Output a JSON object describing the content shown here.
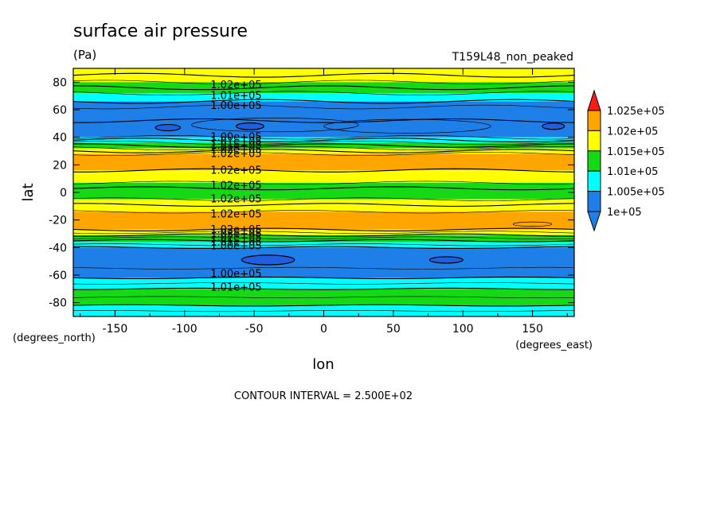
{
  "chart_data": {
    "type": "heatmap",
    "title": "surface air pressure",
    "units": "(Pa)",
    "run_label": "T159L48_non_peaked",
    "xlabel": "lon",
    "ylabel": "lat",
    "x_unit_label": "(degrees_east)",
    "y_unit_label": "(degrees_north)",
    "xlim": [
      -180,
      180
    ],
    "ylim": [
      -90,
      90
    ],
    "x_ticks": [
      -150,
      -100,
      -50,
      0,
      50,
      100,
      150
    ],
    "x_tick_labels": [
      "-150",
      "-100",
      "-50",
      "0",
      "50",
      "100",
      "150"
    ],
    "y_ticks": [
      -80,
      -60,
      -40,
      -20,
      0,
      20,
      40,
      60,
      80
    ],
    "y_tick_labels": [
      "-80",
      "-60",
      "-40",
      "-20",
      "0",
      "20",
      "40",
      "60",
      "80"
    ],
    "contour_interval_text": "CONTOUR INTERVAL = 2.500E+02",
    "colorbar": {
      "levels": [
        100000,
        100500,
        101000,
        101500,
        102000,
        102500
      ],
      "labels": [
        "1e+05",
        "1.005e+05",
        "1.01e+05",
        "1.015e+05",
        "1.02e+05",
        "1.025e+05"
      ],
      "colors": [
        "#1f7fe8",
        "#00ffff",
        "#16d916",
        "#ffff00",
        "#ffa500",
        "#ff1a1a"
      ],
      "low_color": "#1f7fe8",
      "high_color": "#ff1a1a"
    },
    "zonal_bands": [
      {
        "lat_from": 90,
        "lat_to": 80,
        "color": "#ffff00"
      },
      {
        "lat_from": 80,
        "lat_to": 72,
        "color": "#16d916"
      },
      {
        "lat_from": 72,
        "lat_to": 66,
        "color": "#00ffff"
      },
      {
        "lat_from": 66,
        "lat_to": 40,
        "color": "#1f7fe8"
      },
      {
        "lat_from": 40,
        "lat_to": 36,
        "color": "#00ffff"
      },
      {
        "lat_from": 36,
        "lat_to": 32,
        "color": "#16d916"
      },
      {
        "lat_from": 32,
        "lat_to": 28,
        "color": "#ffff00"
      },
      {
        "lat_from": 28,
        "lat_to": 16,
        "color": "#ffa500"
      },
      {
        "lat_from": 16,
        "lat_to": 7,
        "color": "#ffff00"
      },
      {
        "lat_from": 7,
        "lat_to": -5,
        "color": "#16d916"
      },
      {
        "lat_from": -5,
        "lat_to": -14,
        "color": "#ffff00"
      },
      {
        "lat_from": -14,
        "lat_to": -27,
        "color": "#ffa500"
      },
      {
        "lat_from": -27,
        "lat_to": -31,
        "color": "#ffff00"
      },
      {
        "lat_from": -31,
        "lat_to": -36,
        "color": "#16d916"
      },
      {
        "lat_from": -36,
        "lat_to": -40,
        "color": "#00ffff"
      },
      {
        "lat_from": -40,
        "lat_to": -62,
        "color": "#1f7fe8"
      },
      {
        "lat_from": -62,
        "lat_to": -70,
        "color": "#00ffff"
      },
      {
        "lat_from": -70,
        "lat_to": -82,
        "color": "#16d916"
      },
      {
        "lat_from": -82,
        "lat_to": -90,
        "color": "#00ffff"
      }
    ],
    "contour_lines_lat": [
      85,
      80,
      76,
      72,
      66,
      62,
      52,
      40,
      38,
      36,
      34,
      32,
      30,
      28,
      16,
      7,
      3,
      -5,
      -9,
      -14,
      -27,
      -29,
      -31,
      -33,
      -35,
      -38,
      -40,
      -55,
      -62,
      -66,
      -70,
      -76,
      -82,
      -86
    ],
    "contour_labels": [
      {
        "lon": -63,
        "lat": 78,
        "text": "1.02e+05"
      },
      {
        "lon": -63,
        "lat": 70,
        "text": "1.01e+05"
      },
      {
        "lon": -63,
        "lat": 63,
        "text": "1.00e+05"
      },
      {
        "lon": -63,
        "lat": 40,
        "text": "1.00e+05"
      },
      {
        "lon": -63,
        "lat": 37,
        "text": "1.01e+05"
      },
      {
        "lon": -63,
        "lat": 34,
        "text": "1.01e+05"
      },
      {
        "lon": -63,
        "lat": 31,
        "text": "1.02e+05"
      },
      {
        "lon": -63,
        "lat": 28,
        "text": "1.02e+05"
      },
      {
        "lon": -63,
        "lat": 16,
        "text": "1.02e+05"
      },
      {
        "lon": -63,
        "lat": 5,
        "text": "1.02e+05"
      },
      {
        "lon": -63,
        "lat": -5,
        "text": "1.02e+05"
      },
      {
        "lon": -63,
        "lat": -16,
        "text": "1.02e+05"
      },
      {
        "lon": -63,
        "lat": -27,
        "text": "1.02e+05"
      },
      {
        "lon": -63,
        "lat": -30,
        "text": "1.02e+05"
      },
      {
        "lon": -63,
        "lat": -33,
        "text": "1.02e+05"
      },
      {
        "lon": -63,
        "lat": -36,
        "text": "1.01e+05"
      },
      {
        "lon": -63,
        "lat": -39,
        "text": "1.00e+05"
      },
      {
        "lon": -63,
        "lat": -59,
        "text": "1.00e+05"
      },
      {
        "lon": -63,
        "lat": -69,
        "text": "1.01e+05"
      }
    ],
    "low_centers": [
      {
        "lon": -112,
        "lat": 47,
        "rx": 9,
        "ry": 2.3
      },
      {
        "lon": -53,
        "lat": 48,
        "rx": 10,
        "ry": 2.5
      },
      {
        "lon": 165,
        "lat": 48,
        "rx": 8,
        "ry": 2.3
      },
      {
        "lon": -40,
        "lat": -49,
        "rx": 19,
        "ry": 3.5
      },
      {
        "lon": 88,
        "lat": -49,
        "rx": 12,
        "ry": 2.3
      }
    ],
    "outline_cells": [
      {
        "lon": -35,
        "lat": 49,
        "rx": 60,
        "ry": 5
      },
      {
        "lon": 60,
        "lat": 48,
        "rx": 60,
        "ry": 5
      },
      {
        "lon": 150,
        "lat": -23,
        "rx": 14,
        "ry": 1.6
      }
    ]
  }
}
